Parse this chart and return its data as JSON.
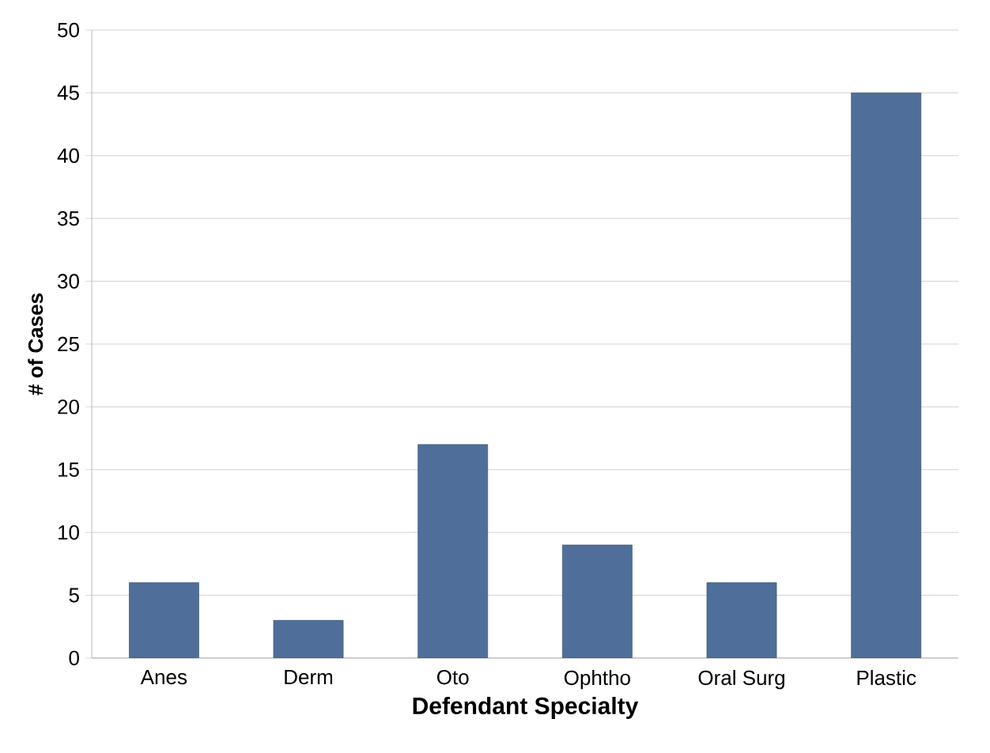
{
  "chart_data": {
    "type": "bar",
    "xlabel": "Defendant Specialty",
    "ylabel": "# of Cases",
    "categories": [
      "Anes",
      "Derm",
      "Oto",
      "Ophtho",
      "Oral Surg",
      "Plastic"
    ],
    "values": [
      6,
      3,
      17,
      9,
      6,
      45
    ],
    "color": "#4f6f9a",
    "ylim": [
      0,
      50
    ],
    "yticks": [
      0,
      5,
      10,
      15,
      20,
      25,
      30,
      35,
      40,
      45,
      50
    ],
    "grid": "y"
  }
}
